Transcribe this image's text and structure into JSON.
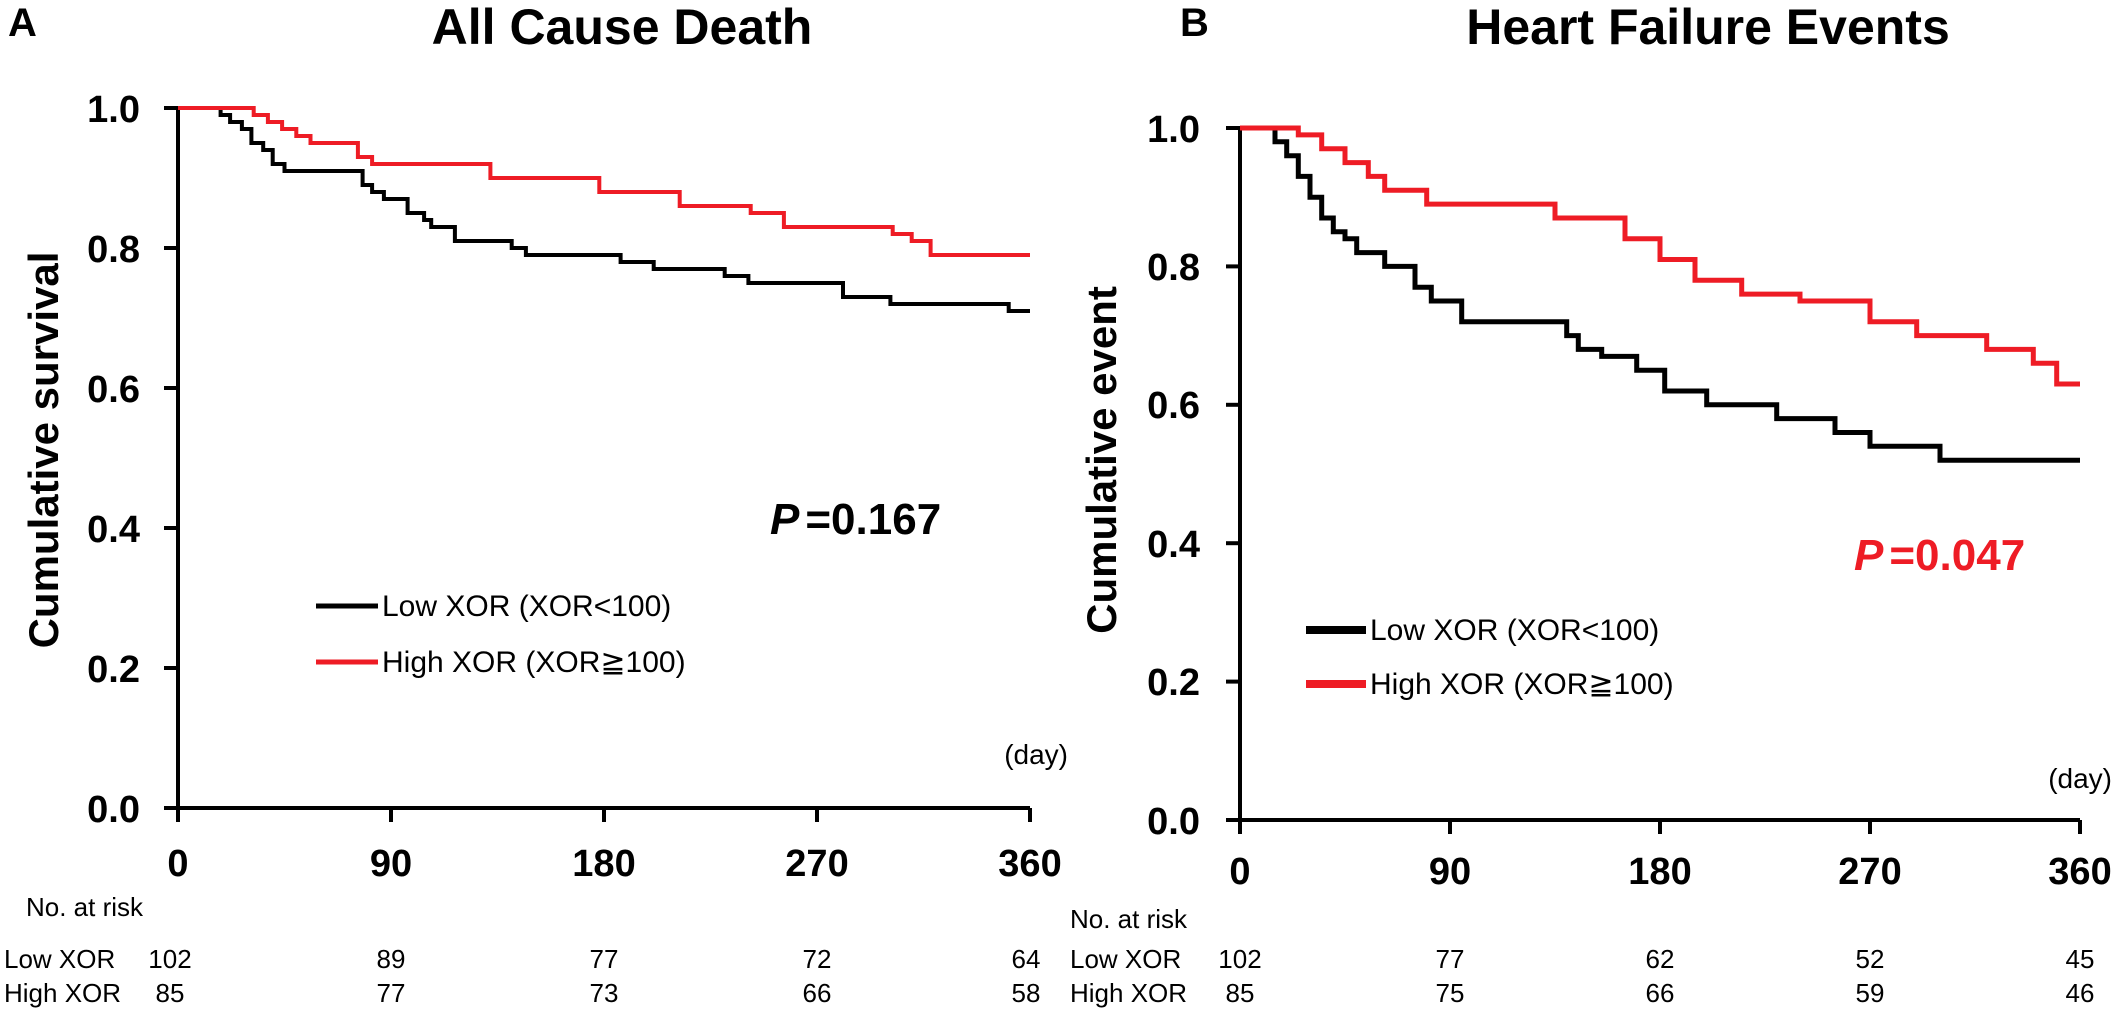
{
  "colors": {
    "low": "#000000",
    "high": "#ee1c25",
    "axis": "#000000"
  },
  "chart_data": [
    {
      "type": "line",
      "panel": "A",
      "title": "All Cause Death",
      "xlabel": "",
      "ylabel": "Cumulative survival",
      "x_unit": "(day)",
      "xlim": [
        0,
        360
      ],
      "ylim": [
        0,
        1
      ],
      "x_ticks": [
        "0",
        "90",
        "180",
        "270",
        "360"
      ],
      "y_ticks": [
        "0.0",
        "0.2",
        "0.4",
        "0.6",
        "0.8",
        "1.0"
      ],
      "grid": false,
      "legend_position": "center",
      "p_value": {
        "label": "P",
        "value": "=0.167",
        "color": "#000000"
      },
      "series": [
        {
          "name": "Low XOR (XOR<100)",
          "color": "#000000",
          "x": [
            0,
            18,
            22,
            27,
            31,
            36,
            40,
            45,
            78,
            82,
            87,
            97,
            104,
            107,
            117,
            141,
            147,
            167,
            187,
            193,
            201,
            211,
            231,
            235,
            241,
            281,
            301,
            351,
            353,
            360
          ],
          "y": [
            1.0,
            0.99,
            0.98,
            0.97,
            0.95,
            0.94,
            0.92,
            0.91,
            0.89,
            0.88,
            0.87,
            0.85,
            0.84,
            0.83,
            0.81,
            0.8,
            0.79,
            0.79,
            0.78,
            0.78,
            0.77,
            0.77,
            0.76,
            0.76,
            0.75,
            0.73,
            0.72,
            0.71,
            0.71,
            0.71
          ]
        },
        {
          "name": "High XOR (XOR≧100)",
          "color": "#ee1c25",
          "x": [
            0,
            32,
            38,
            44,
            50,
            56,
            76,
            82,
            132,
            178,
            212,
            242,
            256,
            302,
            310,
            318,
            360
          ],
          "y": [
            1.0,
            0.99,
            0.98,
            0.97,
            0.96,
            0.95,
            0.93,
            0.92,
            0.9,
            0.88,
            0.86,
            0.85,
            0.83,
            0.82,
            0.81,
            0.79,
            0.79
          ]
        }
      ],
      "at_risk": {
        "header": "No. at risk",
        "rows": [
          {
            "label": "Low XOR",
            "values": [
              "102",
              "89",
              "77",
              "72",
              "64"
            ]
          },
          {
            "label": "High XOR",
            "values": [
              "85",
              "77",
              "73",
              "66",
              "58"
            ]
          }
        ]
      }
    },
    {
      "type": "line",
      "panel": "B",
      "title": "Heart Failure Events",
      "xlabel": "",
      "ylabel": "Cumulative event",
      "x_unit": "(day)",
      "xlim": [
        0,
        360
      ],
      "ylim": [
        0,
        1
      ],
      "x_ticks": [
        "0",
        "90",
        "180",
        "270",
        "360"
      ],
      "y_ticks": [
        "0.0",
        "0.2",
        "0.4",
        "0.6",
        "0.8",
        "1.0"
      ],
      "grid": false,
      "legend_position": "center-left",
      "p_value": {
        "label": "P",
        "value": "=0.047",
        "color": "#ee1c25"
      },
      "series": [
        {
          "name": "Low XOR (XOR<100)",
          "color": "#000000",
          "x": [
            0,
            15,
            20,
            25,
            30,
            35,
            40,
            45,
            50,
            62,
            75,
            82,
            95,
            140,
            145,
            155,
            170,
            182,
            200,
            230,
            255,
            270,
            300,
            360
          ],
          "y": [
            1.0,
            0.98,
            0.96,
            0.93,
            0.9,
            0.87,
            0.85,
            0.84,
            0.82,
            0.8,
            0.77,
            0.75,
            0.72,
            0.7,
            0.68,
            0.67,
            0.65,
            0.62,
            0.6,
            0.58,
            0.56,
            0.54,
            0.52,
            0.52
          ]
        },
        {
          "name": "High XOR (XOR≧100)",
          "color": "#ee1c25",
          "x": [
            0,
            25,
            35,
            45,
            55,
            62,
            80,
            135,
            165,
            180,
            195,
            215,
            240,
            270,
            290,
            320,
            340,
            350,
            360
          ],
          "y": [
            1.0,
            0.99,
            0.97,
            0.95,
            0.93,
            0.91,
            0.89,
            0.87,
            0.84,
            0.81,
            0.78,
            0.76,
            0.75,
            0.72,
            0.7,
            0.68,
            0.66,
            0.63,
            0.63
          ]
        }
      ],
      "at_risk": {
        "header": "No. at risk",
        "rows": [
          {
            "label": "Low XOR",
            "values": [
              "102",
              "77",
              "62",
              "52",
              "45"
            ]
          },
          {
            "label": "High XOR",
            "values": [
              "85",
              "75",
              "66",
              "59",
              "46"
            ]
          }
        ]
      }
    }
  ]
}
